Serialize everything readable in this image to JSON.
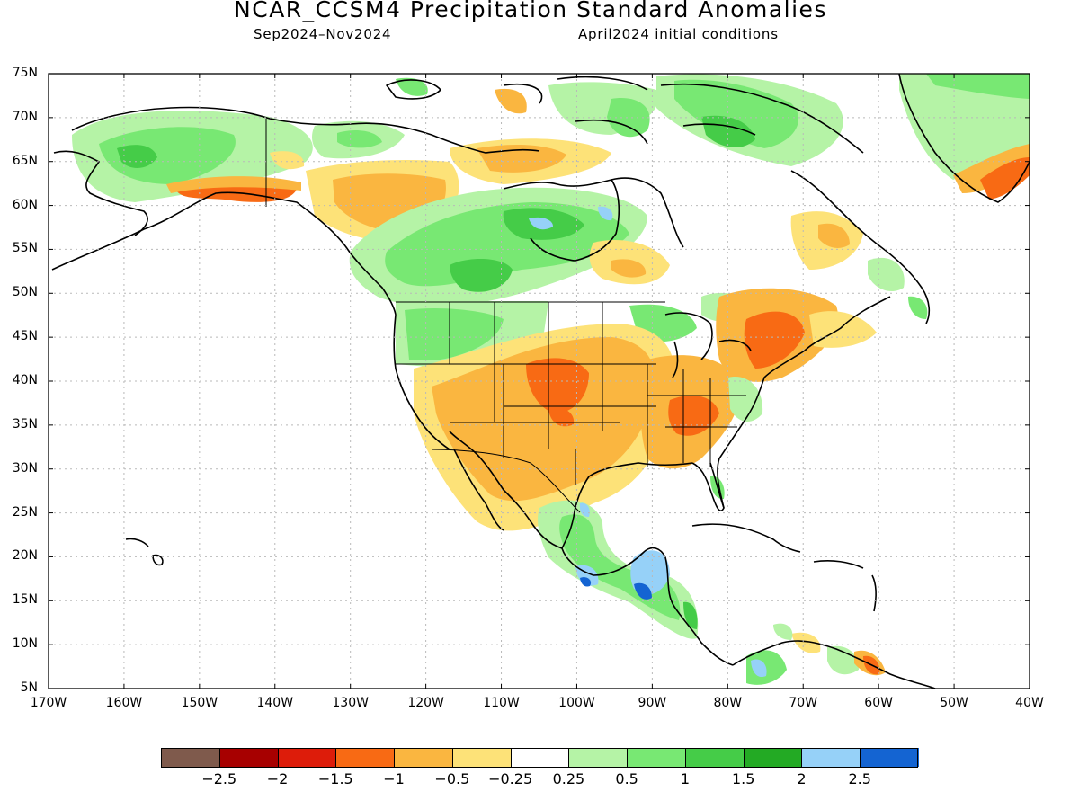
{
  "header": {
    "title": "NCAR_CCSM4 Precipitation Standard Anomalies",
    "period": "Sep2024–Nov2024",
    "init": "April2024 initial conditions"
  },
  "axes": {
    "lat_labels": [
      "75N",
      "70N",
      "65N",
      "60N",
      "55N",
      "50N",
      "45N",
      "40N",
      "35N",
      "30N",
      "25N",
      "20N",
      "15N",
      "10N",
      "5N"
    ],
    "lon_labels": [
      "170W",
      "160W",
      "150W",
      "140W",
      "130W",
      "120W",
      "110W",
      "100W",
      "90W",
      "80W",
      "70W",
      "60W",
      "50W",
      "40W"
    ],
    "lat_range": [
      5,
      75
    ],
    "lon_range": [
      -170,
      -40
    ],
    "grid": "dotted"
  },
  "legend": {
    "colors": [
      "#7f5a4c",
      "#a70000",
      "#dd1c0a",
      "#f86a14",
      "#fab640",
      "#fde278",
      "#ffffff",
      "#b5f3a6",
      "#78e873",
      "#45cc48",
      "#23aa24",
      "#96d1f8",
      "#1464d2"
    ],
    "labels": [
      "−2.5",
      "−2",
      "−1.5",
      "−1",
      "−0.5",
      "−0.25",
      "0.25",
      "0.5",
      "1",
      "1.5",
      "2",
      "2.5"
    ]
  },
  "colors": {
    "dry_strong": "#f86a14",
    "dry": "#fab640",
    "dry_weak": "#fde278",
    "wet_weak": "#b5f3a6",
    "wet": "#78e873",
    "wet_strong": "#45cc48",
    "wet_stronger": "#23aa24",
    "very_wet": "#96d1f8",
    "extreme_wet": "#1464d2"
  }
}
